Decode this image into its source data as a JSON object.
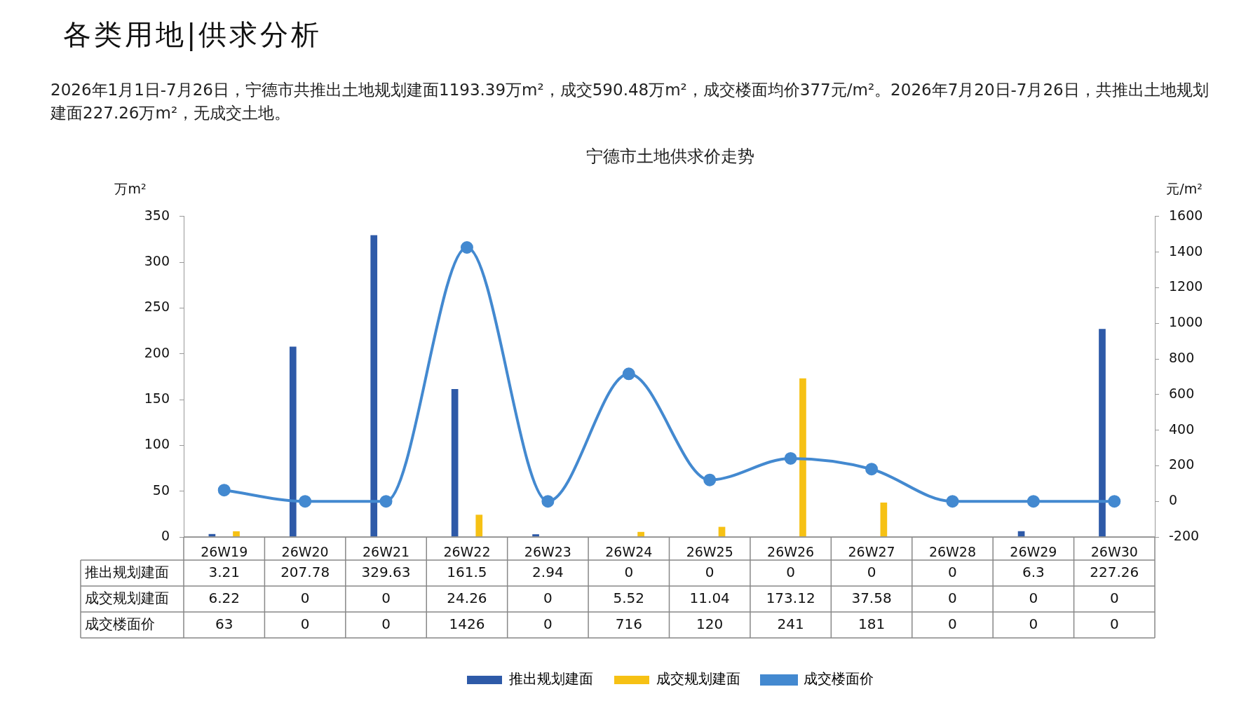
{
  "chart_data": {
    "type": "bar",
    "title": "宁德市土地供求价走势",
    "annotations": [
      "各类用地|供求分析",
      "2026年1月1日-7月26日，宁德市共推出土地规划建面1193.39万m²，成交590.48万m²，成交楼面均价377元/m²。2026年7月20日-7月26日，共推出土地规划建面227.26万m²，无成交土地。"
    ],
    "ylabel": "万m²",
    "y2label": "元/m²",
    "categories": [
      "26W19",
      "26W20",
      "26W21",
      "26W22",
      "26W23",
      "26W24",
      "26W25",
      "26W26",
      "26W27",
      "26W28",
      "26W29",
      "26W30"
    ],
    "series": [
      {
        "name": "推出规划建面",
        "color": "#2e5aa8",
        "values": [
          3.21,
          207.78,
          329.63,
          161.5,
          2.94,
          0,
          0,
          0,
          0,
          0,
          6.3,
          227.26
        ]
      },
      {
        "name": "成交规划建面",
        "color": "#f6c114",
        "values": [
          6.22,
          0,
          0,
          24.26,
          0,
          5.52,
          11.04,
          173.12,
          37.58,
          0,
          0,
          0
        ]
      },
      {
        "name": "成交楼面价",
        "type": "line",
        "axis": "y2",
        "color": "#4389d0",
        "marker": "circle",
        "values": [
          63,
          0,
          0,
          1426,
          0,
          716,
          120,
          241,
          181,
          0,
          0,
          0
        ]
      }
    ],
    "ylim": [
      0,
      350
    ],
    "yticks": [
      0,
      50,
      100,
      150,
      200,
      250,
      300,
      350
    ],
    "y2lim": [
      -200,
      1600
    ],
    "y2ticks": [
      -200,
      0,
      200,
      400,
      600,
      800,
      1000,
      1200,
      1400,
      1600
    ],
    "grid": false,
    "legend": "bottom",
    "data_labels": true
  }
}
